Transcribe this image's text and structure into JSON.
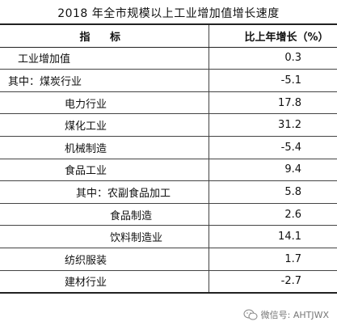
{
  "title": "2018 年全市规模以上工业增加值增长速度",
  "table": {
    "headers": [
      "指  标",
      "比上年增长（%）"
    ],
    "rows": [
      {
        "name": "工业增加值",
        "indent": 22,
        "value": "0.3"
      },
      {
        "name": "其中：煤炭行业",
        "indent": 10,
        "value": "-5.1"
      },
      {
        "name": "电力行业",
        "indent": 80,
        "value": "17.8"
      },
      {
        "name": "煤化工业",
        "indent": 80,
        "value": "31.2"
      },
      {
        "name": "机械制造",
        "indent": 80,
        "value": "-5.4"
      },
      {
        "name": "食品工业",
        "indent": 80,
        "value": "9.4"
      },
      {
        "name": "其中：农副食品加工",
        "indent": 94,
        "value": "5.8"
      },
      {
        "name": "食品制造",
        "indent": 136,
        "value": "2.6"
      },
      {
        "name": "饮料制造业",
        "indent": 136,
        "value": "14.1"
      },
      {
        "name": "纺织服装",
        "indent": 80,
        "value": "1.7"
      },
      {
        "name": "建材行业",
        "indent": 80,
        "value": "-2.7"
      }
    ]
  },
  "watermark": {
    "text": "微信号: AHTJWX",
    "icon": "wechat-icon"
  }
}
